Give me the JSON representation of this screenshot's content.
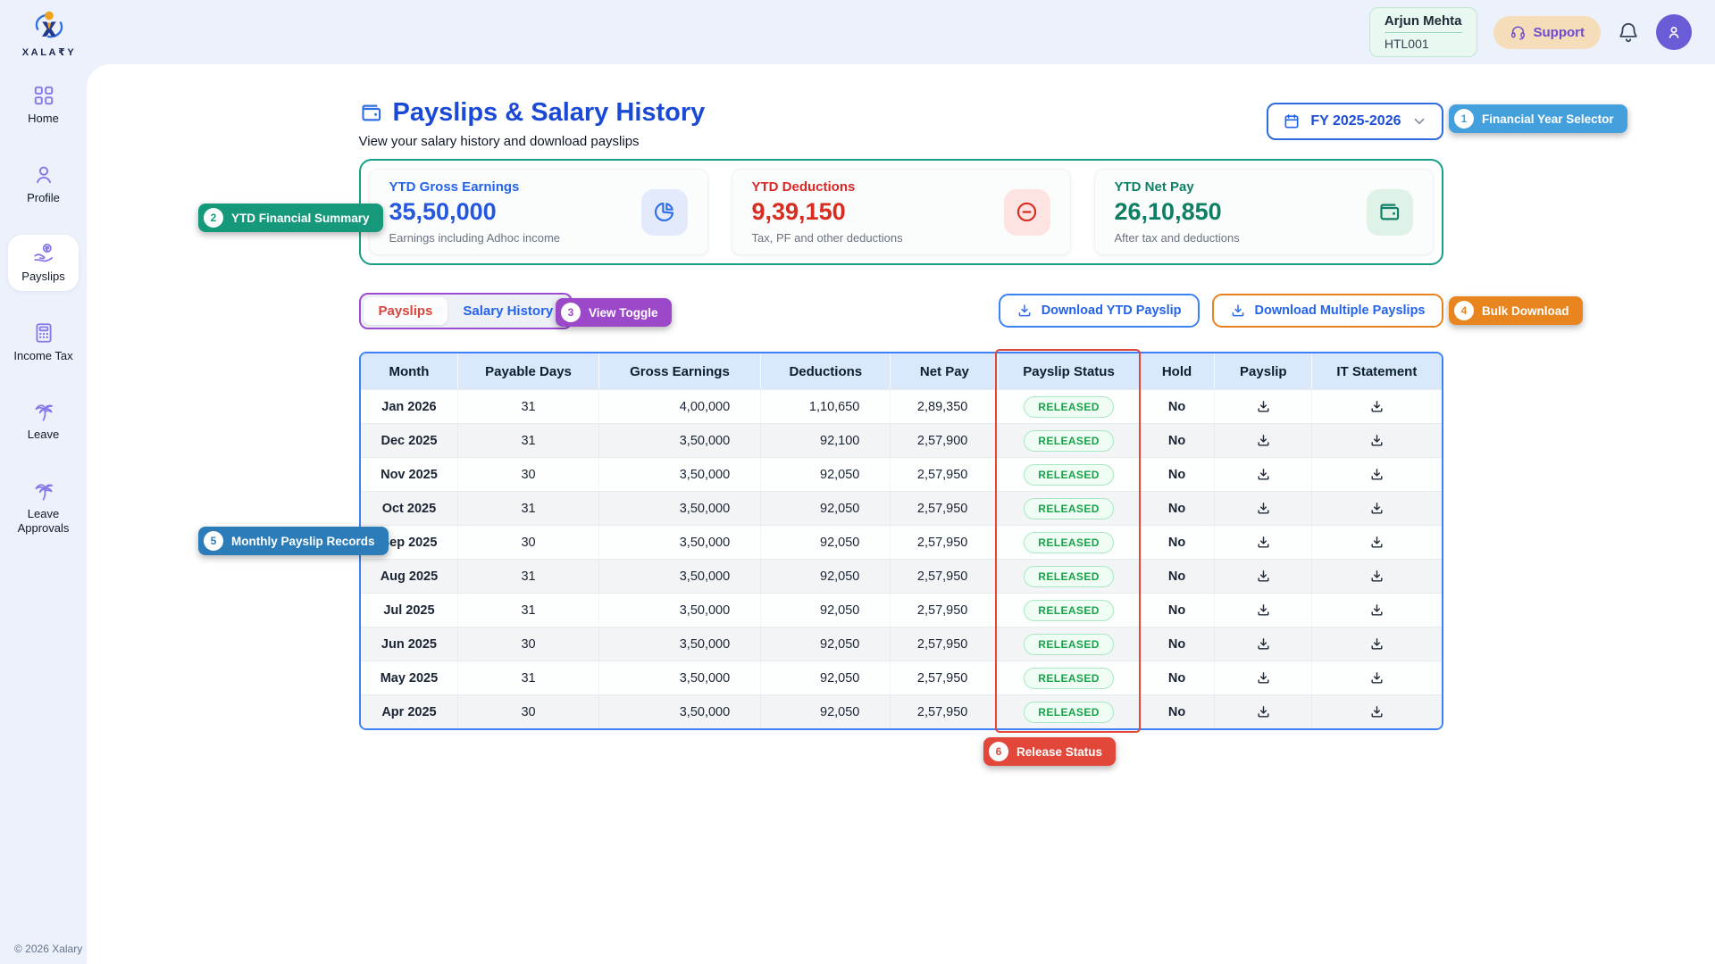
{
  "brand": {
    "name": "XALA₹Y",
    "footer": "© 2026 Xalary"
  },
  "header": {
    "user_name": "Arjun Mehta",
    "user_id": "HTL001",
    "support_label": "Support"
  },
  "sidebar": {
    "items": [
      {
        "label": "Home",
        "icon": "grid",
        "active": false
      },
      {
        "label": "Profile",
        "icon": "user",
        "active": false
      },
      {
        "label": "Payslips",
        "icon": "rupee-hand",
        "active": true
      },
      {
        "label": "Income Tax",
        "icon": "calculator",
        "active": false
      },
      {
        "label": "Leave",
        "icon": "palm",
        "active": false
      },
      {
        "label": "Leave Approvals",
        "icon": "palm",
        "active": false
      }
    ]
  },
  "page": {
    "title": "Payslips & Salary History",
    "subtitle": "View your salary history and download payslips"
  },
  "fy_selector": {
    "label": "FY 2025-2026"
  },
  "summary_cards": [
    {
      "label": "YTD Gross Earnings",
      "value": "35,50,000",
      "desc": "Earnings including Adhoc income",
      "icon": "pie-chart",
      "text_color": "#2563eb",
      "value_color": "#2456e0",
      "icon_bg": "#e3eafc",
      "icon_color": "#2f6fe4"
    },
    {
      "label": "YTD Deductions",
      "value": "9,39,150",
      "desc": "Tax, PF and other deductions",
      "icon": "minus-circle",
      "text_color": "#dc2626",
      "value_color": "#d92c20",
      "icon_bg": "#fde3e1",
      "icon_color": "#d92c20"
    },
    {
      "label": "YTD Net Pay",
      "value": "26,10,850",
      "desc": "After tax and deductions",
      "icon": "wallet",
      "text_color": "#0f8066",
      "value_color": "#0e7f62",
      "icon_bg": "#def2e7",
      "icon_color": "#0f8066"
    }
  ],
  "tabs": [
    {
      "label": "Payslips",
      "active": true
    },
    {
      "label": "Salary History",
      "active": false
    }
  ],
  "actions": {
    "download_ytd": "Download YTD Payslip",
    "download_multiple": "Download Multiple Payslips"
  },
  "table": {
    "columns": [
      "Month",
      "Payable Days",
      "Gross Earnings",
      "Deductions",
      "Net Pay",
      "Payslip Status",
      "Hold",
      "Payslip",
      "IT Statement"
    ],
    "rows": [
      {
        "month": "Jan 2026",
        "days": "31",
        "gross": "4,00,000",
        "deductions": "1,10,650",
        "net": "2,89,350",
        "status": "RELEASED",
        "hold": "No"
      },
      {
        "month": "Dec 2025",
        "days": "31",
        "gross": "3,50,000",
        "deductions": "92,100",
        "net": "2,57,900",
        "status": "RELEASED",
        "hold": "No"
      },
      {
        "month": "Nov 2025",
        "days": "30",
        "gross": "3,50,000",
        "deductions": "92,050",
        "net": "2,57,950",
        "status": "RELEASED",
        "hold": "No"
      },
      {
        "month": "Oct 2025",
        "days": "31",
        "gross": "3,50,000",
        "deductions": "92,050",
        "net": "2,57,950",
        "status": "RELEASED",
        "hold": "No"
      },
      {
        "month": "Sep 2025",
        "days": "30",
        "gross": "3,50,000",
        "deductions": "92,050",
        "net": "2,57,950",
        "status": "RELEASED",
        "hold": "No"
      },
      {
        "month": "Aug 2025",
        "days": "31",
        "gross": "3,50,000",
        "deductions": "92,050",
        "net": "2,57,950",
        "status": "RELEASED",
        "hold": "No"
      },
      {
        "month": "Jul 2025",
        "days": "31",
        "gross": "3,50,000",
        "deductions": "92,050",
        "net": "2,57,950",
        "status": "RELEASED",
        "hold": "No"
      },
      {
        "month": "Jun 2025",
        "days": "30",
        "gross": "3,50,000",
        "deductions": "92,050",
        "net": "2,57,950",
        "status": "RELEASED",
        "hold": "No"
      },
      {
        "month": "May 2025",
        "days": "31",
        "gross": "3,50,000",
        "deductions": "92,050",
        "net": "2,57,950",
        "status": "RELEASED",
        "hold": "No"
      },
      {
        "month": "Apr 2025",
        "days": "30",
        "gross": "3,50,000",
        "deductions": "92,050",
        "net": "2,57,950",
        "status": "RELEASED",
        "hold": "No"
      }
    ],
    "status_style": {
      "text": "#17a34a",
      "bg": "#f0fdf4",
      "border": "#a9e8c2"
    }
  },
  "annotations": [
    {
      "num": "1",
      "label": "Financial Year Selector",
      "color": "#44a0dd"
    },
    {
      "num": "2",
      "label": "YTD Financial Summary",
      "color": "#16997a"
    },
    {
      "num": "3",
      "label": "View Toggle",
      "color": "#9c49c9"
    },
    {
      "num": "4",
      "label": "Bulk Download",
      "color": "#e8851f"
    },
    {
      "num": "5",
      "label": "Monthly Payslip Records",
      "color": "#2b7cb9"
    },
    {
      "num": "6",
      "label": "Release Status",
      "color": "#e2473a"
    }
  ],
  "colors": {
    "accent_blue": "#2563eb",
    "title_blue": "#1a49d6",
    "summary_border": "#16a085",
    "table_border": "#3c82f6",
    "table_header_bg": "#d9e8fb",
    "tab_border": "#9d4bd0",
    "tab_active_text": "#d8453c",
    "highlight_red": "#e2473a",
    "background": "#edf1fb"
  }
}
